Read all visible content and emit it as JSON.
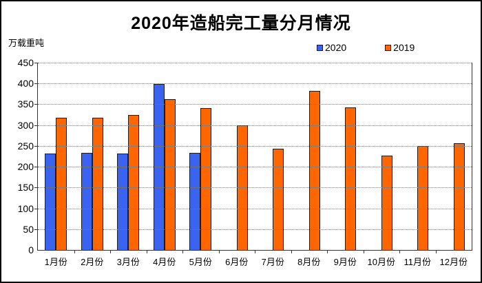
{
  "chart_data": {
    "type": "bar",
    "title": "2020年造船完工量分月情况",
    "unit_label": "万载重吨",
    "categories": [
      "1月份",
      "2月份",
      "3月份",
      "4月份",
      "5月份",
      "6月份",
      "7月份",
      "8月份",
      "9月份",
      "10月份",
      "11月份",
      "12月份"
    ],
    "series": [
      {
        "name": "2020",
        "color": "#3A64F0",
        "values": [
          232,
          234,
          232,
          398,
          234,
          null,
          null,
          null,
          null,
          null,
          null,
          null
        ]
      },
      {
        "name": "2019",
        "color": "#FF6600",
        "values": [
          317,
          318,
          325,
          362,
          341,
          300,
          244,
          383,
          343,
          226,
          250,
          257
        ]
      }
    ],
    "ylim": [
      0,
      450
    ],
    "ytick_step": 50,
    "grid": true,
    "legend_position": "top-right"
  }
}
